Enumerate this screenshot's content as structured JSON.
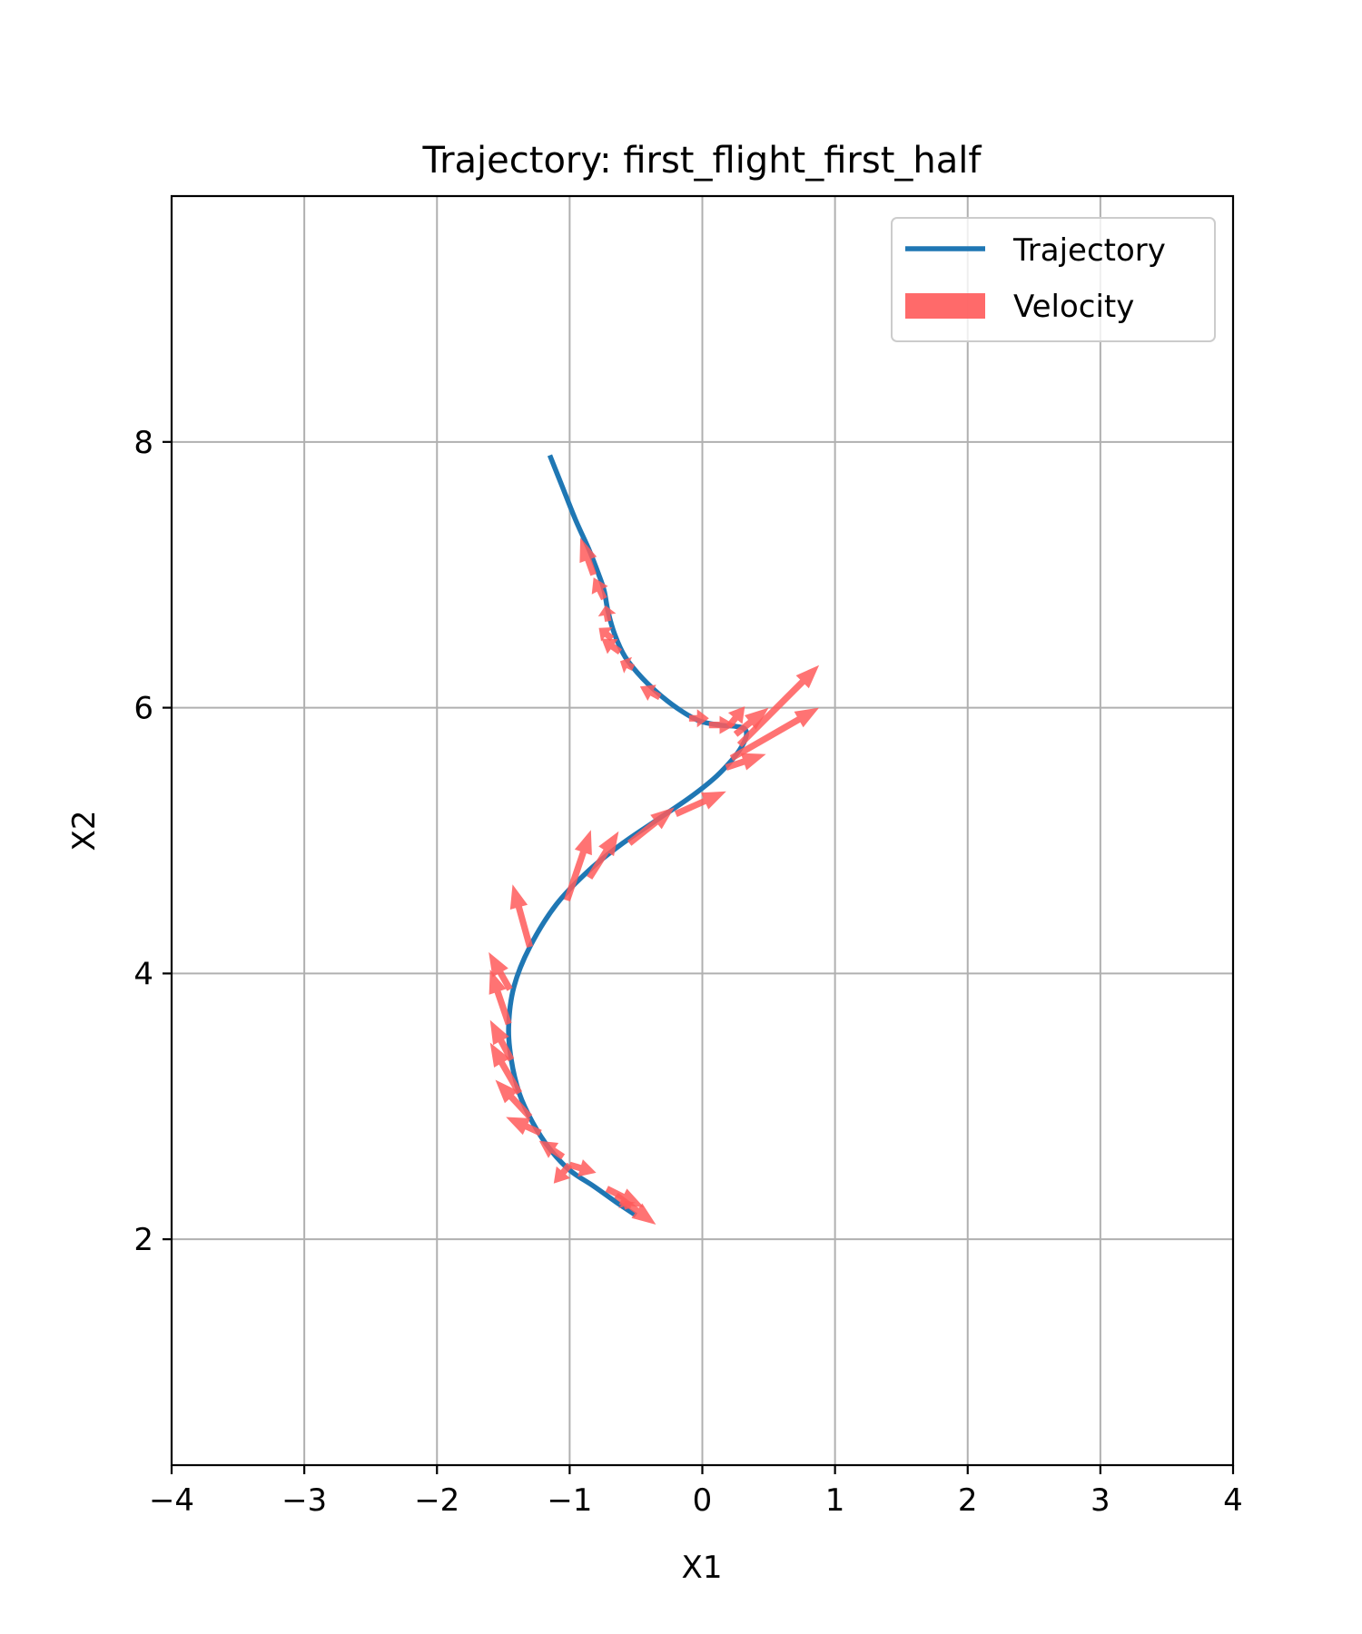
{
  "chart_data": {
    "type": "line",
    "title": "Trajectory: first_flight_first_half",
    "xlabel": "X1",
    "ylabel": "X2",
    "xlim": [
      -4,
      4
    ],
    "ylim": [
      0.3,
      9.85
    ],
    "xticks": [
      -4,
      -3,
      -2,
      -1,
      0,
      1,
      2,
      3,
      4
    ],
    "xtick_labels": [
      "−4",
      "−3",
      "−2",
      "−1",
      "0",
      "1",
      "2",
      "3",
      "4"
    ],
    "yticks": [
      2,
      4,
      6,
      8
    ],
    "ytick_labels": [
      "2",
      "4",
      "6",
      "8"
    ],
    "grid": true,
    "legend_position": "top-right",
    "legend": [
      {
        "label": "Trajectory",
        "kind": "line"
      },
      {
        "label": "Velocity",
        "kind": "patch"
      }
    ],
    "series": [
      {
        "name": "Trajectory",
        "color": "#1f77b4",
        "x": [
          -1.15,
          -1.05,
          -0.95,
          -0.85,
          -0.78,
          -0.74,
          -0.71,
          -0.66,
          -0.58,
          -0.45,
          -0.3,
          -0.15,
          -0.02,
          0.12,
          0.25,
          0.32,
          0.33,
          0.28,
          0.2,
          0.08,
          -0.1,
          -0.35,
          -0.6,
          -0.85,
          -1.1,
          -1.3,
          -1.42,
          -1.46,
          -1.44,
          -1.38,
          -1.28,
          -1.15,
          -1.0,
          -0.82,
          -0.65,
          -0.5
        ],
        "y": [
          7.9,
          7.65,
          7.4,
          7.18,
          7.0,
          6.88,
          6.72,
          6.55,
          6.38,
          6.22,
          6.08,
          5.97,
          5.9,
          5.87,
          5.86,
          5.84,
          5.78,
          5.68,
          5.58,
          5.46,
          5.32,
          5.15,
          4.98,
          4.78,
          4.52,
          4.2,
          3.9,
          3.6,
          3.35,
          3.1,
          2.88,
          2.68,
          2.52,
          2.4,
          2.28,
          2.18
        ]
      }
    ],
    "velocity": {
      "name": "Velocity",
      "color": "#ff5a5a",
      "arrows": [
        {
          "x": -0.82,
          "y": 7.0,
          "u": -0.1,
          "v": 0.28
        },
        {
          "x": -0.74,
          "y": 6.82,
          "u": -0.08,
          "v": 0.16
        },
        {
          "x": -0.71,
          "y": 6.65,
          "u": -0.02,
          "v": 0.12
        },
        {
          "x": -0.68,
          "y": 6.52,
          "u": -0.1,
          "v": 0.08
        },
        {
          "x": -0.62,
          "y": 6.42,
          "u": -0.14,
          "v": 0.1
        },
        {
          "x": -0.52,
          "y": 6.3,
          "u": -0.1,
          "v": 0.05
        },
        {
          "x": -0.32,
          "y": 6.08,
          "u": -0.15,
          "v": 0.08
        },
        {
          "x": -0.1,
          "y": 5.92,
          "u": 0.15,
          "v": 0.0
        },
        {
          "x": 0.05,
          "y": 5.87,
          "u": 0.2,
          "v": 0.0
        },
        {
          "x": 0.2,
          "y": 5.86,
          "u": 0.12,
          "v": 0.15
        },
        {
          "x": 0.25,
          "y": 5.8,
          "u": 0.25,
          "v": 0.2
        },
        {
          "x": 0.28,
          "y": 5.72,
          "u": 0.6,
          "v": 0.6
        },
        {
          "x": 0.22,
          "y": 5.62,
          "u": 0.66,
          "v": 0.38
        },
        {
          "x": 0.18,
          "y": 5.55,
          "u": 0.3,
          "v": 0.1
        },
        {
          "x": -0.2,
          "y": 5.2,
          "u": 0.38,
          "v": 0.17
        },
        {
          "x": -0.55,
          "y": 4.98,
          "u": 0.34,
          "v": 0.27
        },
        {
          "x": -0.85,
          "y": 4.72,
          "u": 0.22,
          "v": 0.35
        },
        {
          "x": -1.02,
          "y": 4.55,
          "u": 0.18,
          "v": 0.53
        },
        {
          "x": -1.3,
          "y": 4.2,
          "u": -0.13,
          "v": 0.47
        },
        {
          "x": -1.45,
          "y": 3.88,
          "u": -0.16,
          "v": 0.28
        },
        {
          "x": -1.46,
          "y": 3.62,
          "u": -0.14,
          "v": 0.41
        },
        {
          "x": -1.44,
          "y": 3.35,
          "u": -0.16,
          "v": 0.3
        },
        {
          "x": -1.38,
          "y": 3.1,
          "u": -0.22,
          "v": 0.38
        },
        {
          "x": -1.3,
          "y": 2.92,
          "u": -0.26,
          "v": 0.28
        },
        {
          "x": -1.22,
          "y": 2.8,
          "u": -0.26,
          "v": 0.12
        },
        {
          "x": -1.05,
          "y": 2.62,
          "u": -0.18,
          "v": 0.12
        },
        {
          "x": -1.0,
          "y": 2.56,
          "u": 0.2,
          "v": -0.06
        },
        {
          "x": -1.0,
          "y": 2.56,
          "u": -0.12,
          "v": -0.14
        },
        {
          "x": -0.72,
          "y": 2.38,
          "u": 0.28,
          "v": -0.14
        },
        {
          "x": -0.65,
          "y": 2.33,
          "u": 0.3,
          "v": -0.22
        },
        {
          "x": -0.56,
          "y": 2.23,
          "u": -0.02,
          "v": 0.06
        }
      ]
    }
  }
}
